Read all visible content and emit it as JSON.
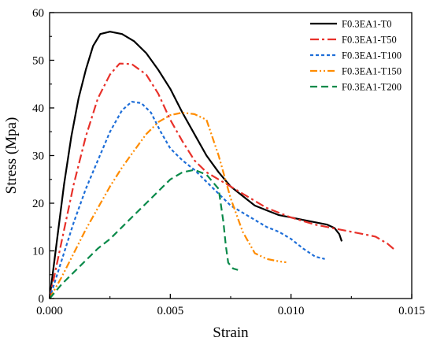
{
  "chart_data": {
    "type": "line",
    "title": "",
    "xlabel": "Strain",
    "ylabel": "Stress (Mpa)",
    "xlim": [
      0,
      0.015
    ],
    "ylim": [
      0,
      60
    ],
    "xticks": [
      0,
      0.005,
      0.01,
      0.015
    ],
    "xtick_labels": [
      "0.000",
      "0.005",
      "0.010",
      "0.015"
    ],
    "yticks": [
      0,
      10,
      20,
      30,
      40,
      50,
      60
    ],
    "ytick_labels": [
      "0",
      "10",
      "20",
      "30",
      "40",
      "50",
      "60"
    ],
    "grid": false,
    "legend_position": "top-right",
    "series": [
      {
        "name": "F0.3EA1-T0",
        "color": "#000000",
        "dash": "solid",
        "points": [
          [
            0,
            0
          ],
          [
            0.0003,
            12
          ],
          [
            0.0006,
            24
          ],
          [
            0.0009,
            34
          ],
          [
            0.0012,
            42
          ],
          [
            0.0015,
            48
          ],
          [
            0.0018,
            53
          ],
          [
            0.0021,
            55.5
          ],
          [
            0.0025,
            56
          ],
          [
            0.003,
            55.5
          ],
          [
            0.0035,
            54
          ],
          [
            0.004,
            51.5
          ],
          [
            0.0045,
            48
          ],
          [
            0.005,
            44
          ],
          [
            0.0055,
            39
          ],
          [
            0.006,
            34.5
          ],
          [
            0.0065,
            30
          ],
          [
            0.007,
            26.5
          ],
          [
            0.0075,
            23.5
          ],
          [
            0.008,
            21.5
          ],
          [
            0.0085,
            19.5
          ],
          [
            0.009,
            18.5
          ],
          [
            0.0095,
            17.5
          ],
          [
            0.01,
            17
          ],
          [
            0.0105,
            16.5
          ],
          [
            0.011,
            16
          ],
          [
            0.0115,
            15.5
          ],
          [
            0.0118,
            14.8
          ],
          [
            0.012,
            13.5
          ],
          [
            0.0121,
            12
          ]
        ]
      },
      {
        "name": "F0.3EA1-T50",
        "color": "#e8312a",
        "dash": "dashdot",
        "points": [
          [
            0,
            0
          ],
          [
            0.0005,
            12
          ],
          [
            0.001,
            24
          ],
          [
            0.0015,
            34
          ],
          [
            0.002,
            42
          ],
          [
            0.0025,
            47
          ],
          [
            0.0029,
            49.3
          ],
          [
            0.0034,
            49.2
          ],
          [
            0.004,
            47
          ],
          [
            0.0045,
            43
          ],
          [
            0.005,
            37.5
          ],
          [
            0.0055,
            33
          ],
          [
            0.006,
            29
          ],
          [
            0.0065,
            26.5
          ],
          [
            0.007,
            25
          ],
          [
            0.0075,
            23.5
          ],
          [
            0.008,
            22
          ],
          [
            0.009,
            19
          ],
          [
            0.01,
            17
          ],
          [
            0.011,
            15.5
          ],
          [
            0.012,
            14.5
          ],
          [
            0.013,
            13.5
          ],
          [
            0.0135,
            13
          ],
          [
            0.014,
            11.5
          ],
          [
            0.0143,
            10.2
          ]
        ]
      },
      {
        "name": "F0.3EA1-T100",
        "color": "#1e6ed8",
        "dash": "shortdash",
        "points": [
          [
            0,
            0
          ],
          [
            0.0005,
            8
          ],
          [
            0.001,
            16
          ],
          [
            0.0015,
            23
          ],
          [
            0.002,
            29
          ],
          [
            0.0025,
            35
          ],
          [
            0.003,
            39.5
          ],
          [
            0.0034,
            41.3
          ],
          [
            0.0038,
            41
          ],
          [
            0.0042,
            39
          ],
          [
            0.0046,
            35
          ],
          [
            0.005,
            31.5
          ],
          [
            0.0055,
            29
          ],
          [
            0.006,
            27
          ],
          [
            0.0065,
            24.5
          ],
          [
            0.007,
            22
          ],
          [
            0.0075,
            19.5
          ],
          [
            0.008,
            18
          ],
          [
            0.0085,
            16.5
          ],
          [
            0.009,
            15
          ],
          [
            0.0095,
            14
          ],
          [
            0.01,
            12.5
          ],
          [
            0.0105,
            10.5
          ],
          [
            0.011,
            8.8
          ],
          [
            0.0114,
            8.3
          ]
        ]
      },
      {
        "name": "F0.3EA1-T150",
        "color": "#ff8c00",
        "dash": "dashdotdot",
        "points": [
          [
            0,
            0
          ],
          [
            0.0005,
            4.5
          ],
          [
            0.001,
            9.5
          ],
          [
            0.0015,
            14.5
          ],
          [
            0.002,
            19
          ],
          [
            0.0025,
            23.5
          ],
          [
            0.003,
            27.5
          ],
          [
            0.0035,
            31
          ],
          [
            0.004,
            34.5
          ],
          [
            0.0045,
            37
          ],
          [
            0.005,
            38.5
          ],
          [
            0.0055,
            39
          ],
          [
            0.006,
            38.7
          ],
          [
            0.0065,
            37.5
          ],
          [
            0.007,
            30
          ],
          [
            0.0075,
            21
          ],
          [
            0.008,
            14
          ],
          [
            0.0085,
            9.5
          ],
          [
            0.009,
            8.3
          ],
          [
            0.0095,
            7.8
          ],
          [
            0.0098,
            7.6
          ]
        ]
      },
      {
        "name": "F0.3EA1-T200",
        "color": "#0a8a4a",
        "dash": "longdash",
        "points": [
          [
            0,
            0
          ],
          [
            0.0005,
            3
          ],
          [
            0.001,
            5.5
          ],
          [
            0.0015,
            8
          ],
          [
            0.002,
            10.5
          ],
          [
            0.0025,
            12.5
          ],
          [
            0.003,
            15
          ],
          [
            0.0035,
            17.5
          ],
          [
            0.004,
            20
          ],
          [
            0.0045,
            22.5
          ],
          [
            0.005,
            25
          ],
          [
            0.0055,
            26.5
          ],
          [
            0.006,
            27
          ],
          [
            0.0065,
            26
          ],
          [
            0.007,
            23
          ],
          [
            0.0072,
            16
          ],
          [
            0.0073,
            11
          ],
          [
            0.0074,
            7.5
          ],
          [
            0.0076,
            6.3
          ],
          [
            0.0078,
            6
          ]
        ]
      }
    ]
  }
}
